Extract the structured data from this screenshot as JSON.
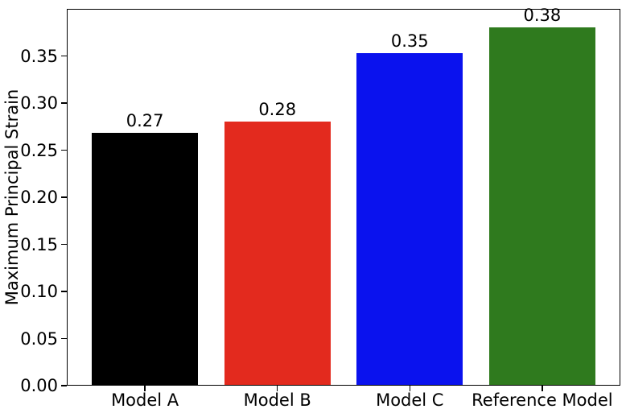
{
  "chart_data": {
    "type": "bar",
    "categories": [
      "Model A",
      "Model B",
      "Model C",
      "Reference Model"
    ],
    "values": [
      0.268,
      0.28,
      0.353,
      0.38
    ],
    "bar_labels": [
      "0.27",
      "0.28",
      "0.35",
      "0.38"
    ],
    "bar_colors": [
      "#000000",
      "#e32a1e",
      "#0a12ee",
      "#2f7a1e"
    ],
    "title": "",
    "xlabel": "",
    "ylabel": "Maximum Principal Strain",
    "ylim": [
      0,
      0.4
    ],
    "xlim": [
      -0.59,
      3.59
    ],
    "bar_width": 0.8,
    "yticks": [
      0.0,
      0.05,
      0.1,
      0.15,
      0.2,
      0.25,
      0.3,
      0.35
    ],
    "ytick_labels": [
      "0.00",
      "0.05",
      "0.10",
      "0.15",
      "0.20",
      "0.25",
      "0.30",
      "0.35"
    ],
    "grid": false,
    "legend": false,
    "axis_color": "#000000",
    "background_color": "#ffffff"
  }
}
